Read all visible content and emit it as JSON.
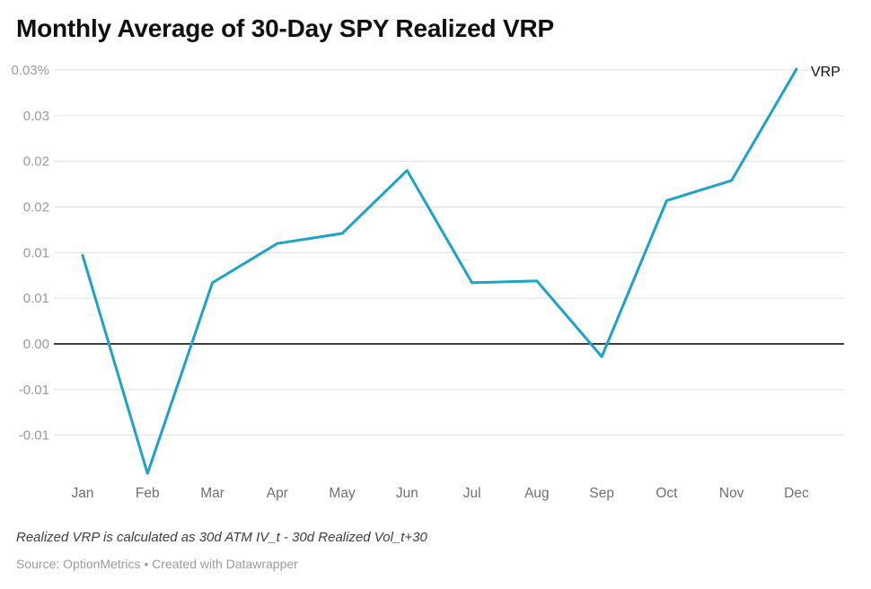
{
  "title": "Monthly Average of 30-Day SPY Realized VRP",
  "footnote": "Realized VRP is calculated as 30d ATM IV_t - 30d Realized Vol_t+30",
  "source": "Source: OptionMetrics • Created with Datawrapper",
  "chart_data": {
    "type": "line",
    "title": "Monthly Average of 30-Day SPY Realized VRP",
    "xlabel": "",
    "ylabel": "",
    "categories": [
      "Jan",
      "Feb",
      "Mar",
      "Apr",
      "May",
      "Jun",
      "Jul",
      "Aug",
      "Sep",
      "Oct",
      "Nov",
      "Dec"
    ],
    "series": [
      {
        "name": "VRP",
        "values": [
          0.0097,
          -0.0142,
          0.0067,
          0.011,
          0.0121,
          0.019,
          0.0067,
          0.0069,
          -0.0014,
          0.0157,
          0.0179,
          0.0301
        ]
      }
    ],
    "y_ticks": [
      {
        "value": 0.03,
        "label": "0.03%"
      },
      {
        "value": 0.025,
        "label": "0.03"
      },
      {
        "value": 0.02,
        "label": "0.02"
      },
      {
        "value": 0.015,
        "label": "0.02"
      },
      {
        "value": 0.01,
        "label": "0.01"
      },
      {
        "value": 0.005,
        "label": "0.01"
      },
      {
        "value": 0.0,
        "label": "0.00"
      },
      {
        "value": -0.005,
        "label": "-0.01"
      },
      {
        "value": -0.01,
        "label": "-0.01"
      }
    ],
    "ylim": [
      -0.0155,
      0.031
    ],
    "grid": true,
    "zero_line": true,
    "legend_position": "top-right-inline",
    "line_color": "#1CA3C9",
    "grid_color": "#e0e0e0",
    "zero_line_color": "#000000",
    "tick_label_color": "#9a9a9a",
    "month_label_color": "#6f6f6f"
  }
}
